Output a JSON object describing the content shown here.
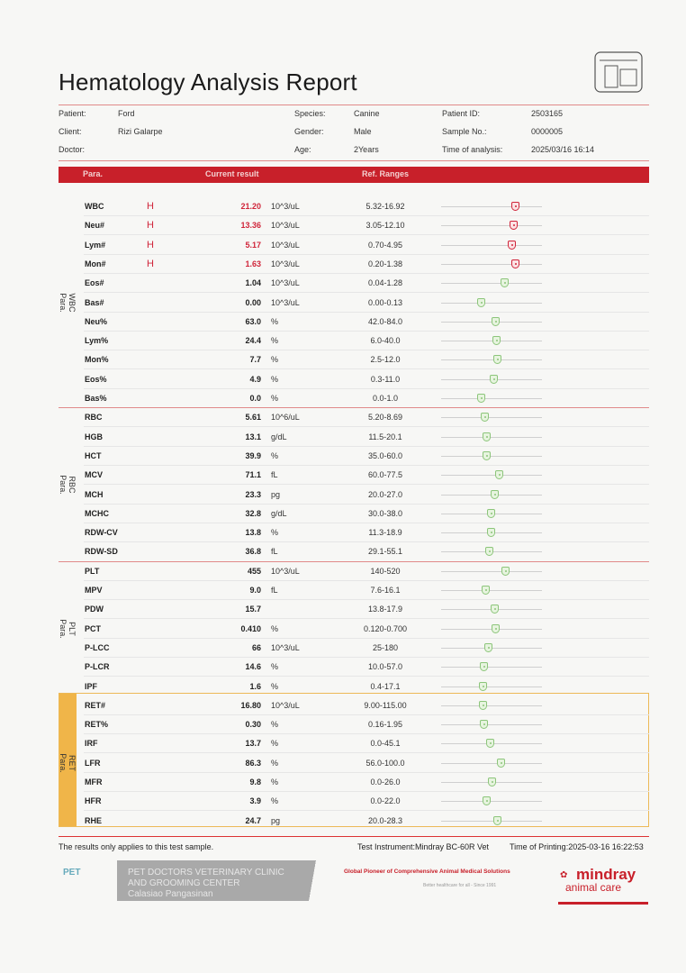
{
  "title": "Hematology Analysis Report",
  "patient_info": {
    "patient_label": "Patient:",
    "patient": "Ford",
    "client_label": "Client:",
    "client": "Rizi Galarpe",
    "doctor_label": "Doctor:",
    "doctor": "",
    "species_label": "Species:",
    "species": "Canine",
    "gender_label": "Gender:",
    "gender": "Male",
    "age_label": "Age:",
    "age": "2Years",
    "patient_id_label": "Patient ID:",
    "patient_id": "2503165",
    "sample_no_label": "Sample No.:",
    "sample_no": "0000005",
    "time_label": "Time of analysis:",
    "time": "2025/03/16 16:14"
  },
  "table_header": {
    "para": "Para.",
    "result": "Current result",
    "ref": "Ref. Ranges"
  },
  "sections": [
    {
      "label": "WBC\nPara.",
      "rows": [
        {
          "name": "WBC",
          "flag": "H",
          "value": "21.20",
          "unit": "10^3/uL",
          "range": "5.32-16.92"
        },
        {
          "name": "Neu#",
          "flag": "H",
          "value": "13.36",
          "unit": "10^3/uL",
          "range": "3.05-12.10"
        },
        {
          "name": "Lym#",
          "flag": "H",
          "value": "5.17",
          "unit": "10^3/uL",
          "range": "0.70-4.95"
        },
        {
          "name": "Mon#",
          "flag": "H",
          "value": "1.63",
          "unit": "10^3/uL",
          "range": "0.20-1.38"
        },
        {
          "name": "Eos#",
          "flag": "",
          "value": "1.04",
          "unit": "10^3/uL",
          "range": "0.04-1.28"
        },
        {
          "name": "Bas#",
          "flag": "",
          "value": "0.00",
          "unit": "10^3/uL",
          "range": "0.00-0.13"
        },
        {
          "name": "Neu%",
          "flag": "",
          "value": "63.0",
          "unit": "%",
          "range": "42.0-84.0"
        },
        {
          "name": "Lym%",
          "flag": "",
          "value": "24.4",
          "unit": "%",
          "range": "6.0-40.0"
        },
        {
          "name": "Mon%",
          "flag": "",
          "value": "7.7",
          "unit": "%",
          "range": "2.5-12.0"
        },
        {
          "name": "Eos%",
          "flag": "",
          "value": "4.9",
          "unit": "%",
          "range": "0.3-11.0"
        },
        {
          "name": "Bas%",
          "flag": "",
          "value": "0.0",
          "unit": "%",
          "range": "0.0-1.0"
        }
      ]
    },
    {
      "label": "RBC\nPara.",
      "rows": [
        {
          "name": "RBC",
          "flag": "",
          "value": "5.61",
          "unit": "10^6/uL",
          "range": "5.20-8.69"
        },
        {
          "name": "HGB",
          "flag": "",
          "value": "13.1",
          "unit": "g/dL",
          "range": "11.5-20.1"
        },
        {
          "name": "HCT",
          "flag": "",
          "value": "39.9",
          "unit": "%",
          "range": "35.0-60.0"
        },
        {
          "name": "MCV",
          "flag": "",
          "value": "71.1",
          "unit": "fL",
          "range": "60.0-77.5"
        },
        {
          "name": "MCH",
          "flag": "",
          "value": "23.3",
          "unit": "pg",
          "range": "20.0-27.0"
        },
        {
          "name": "MCHC",
          "flag": "",
          "value": "32.8",
          "unit": "g/dL",
          "range": "30.0-38.0"
        },
        {
          "name": "RDW-CV",
          "flag": "",
          "value": "13.8",
          "unit": "%",
          "range": "11.3-18.9"
        },
        {
          "name": "RDW-SD",
          "flag": "",
          "value": "36.8",
          "unit": "fL",
          "range": "29.1-55.1"
        }
      ]
    },
    {
      "label": "PLT\nPara.",
      "rows": [
        {
          "name": "PLT",
          "flag": "",
          "value": "455",
          "unit": "10^3/uL",
          "range": "140-520"
        },
        {
          "name": "MPV",
          "flag": "",
          "value": "9.0",
          "unit": "fL",
          "range": "7.6-16.1"
        },
        {
          "name": "PDW",
          "flag": "",
          "value": "15.7",
          "unit": "",
          "range": "13.8-17.9"
        },
        {
          "name": "PCT",
          "flag": "",
          "value": "0.410",
          "unit": "%",
          "range": "0.120-0.700"
        },
        {
          "name": "P-LCC",
          "flag": "",
          "value": "66",
          "unit": "10^3/uL",
          "range": "25-180"
        },
        {
          "name": "P-LCR",
          "flag": "",
          "value": "14.6",
          "unit": "%",
          "range": "10.0-57.0"
        },
        {
          "name": "IPF",
          "flag": "",
          "value": "1.6",
          "unit": "%",
          "range": "0.4-17.1"
        }
      ]
    },
    {
      "label": "RET\nPara.",
      "rows": [
        {
          "name": "RET#",
          "flag": "",
          "value": "16.80",
          "unit": "10^3/uL",
          "range": "9.00-115.00"
        },
        {
          "name": "RET%",
          "flag": "",
          "value": "0.30",
          "unit": "%",
          "range": "0.16-1.95"
        },
        {
          "name": "IRF",
          "flag": "",
          "value": "13.7",
          "unit": "%",
          "range": "0.0-45.1"
        },
        {
          "name": "LFR",
          "flag": "",
          "value": "86.3",
          "unit": "%",
          "range": "56.0-100.0"
        },
        {
          "name": "MFR",
          "flag": "",
          "value": "9.8",
          "unit": "%",
          "range": "0.0-26.0"
        },
        {
          "name": "HFR",
          "flag": "",
          "value": "3.9",
          "unit": "%",
          "range": "0.0-22.0"
        },
        {
          "name": "RHE",
          "flag": "",
          "value": "24.7",
          "unit": "pg",
          "range": "20.0-28.3"
        }
      ]
    }
  ],
  "footer": {
    "note": "The results only applies to this test sample.",
    "instrument": "Test Instrument:Mindray BC-60R Vet",
    "printing": "Time of Printing:2025-03-16 16:22:53",
    "clinic_line1": "PET DOCTORS VETERINARY CLINIC",
    "clinic_line2": "AND GROOMING CENTER",
    "clinic_line3": "Calasiao Pangasinan",
    "clinic_logo_text": "PET",
    "slogan": "Global Pioneer of Comprehensive Animal Medical Solutions",
    "slogan_sub": "Better healthcare for all  -  Since 1991",
    "brand": "mindray",
    "brand_sub": "animal care"
  },
  "colors": {
    "accent_red": "#c8202a",
    "ret_orange": "#f0b549",
    "normal_green": "#8cc57a",
    "high_red": "#d0253a"
  }
}
